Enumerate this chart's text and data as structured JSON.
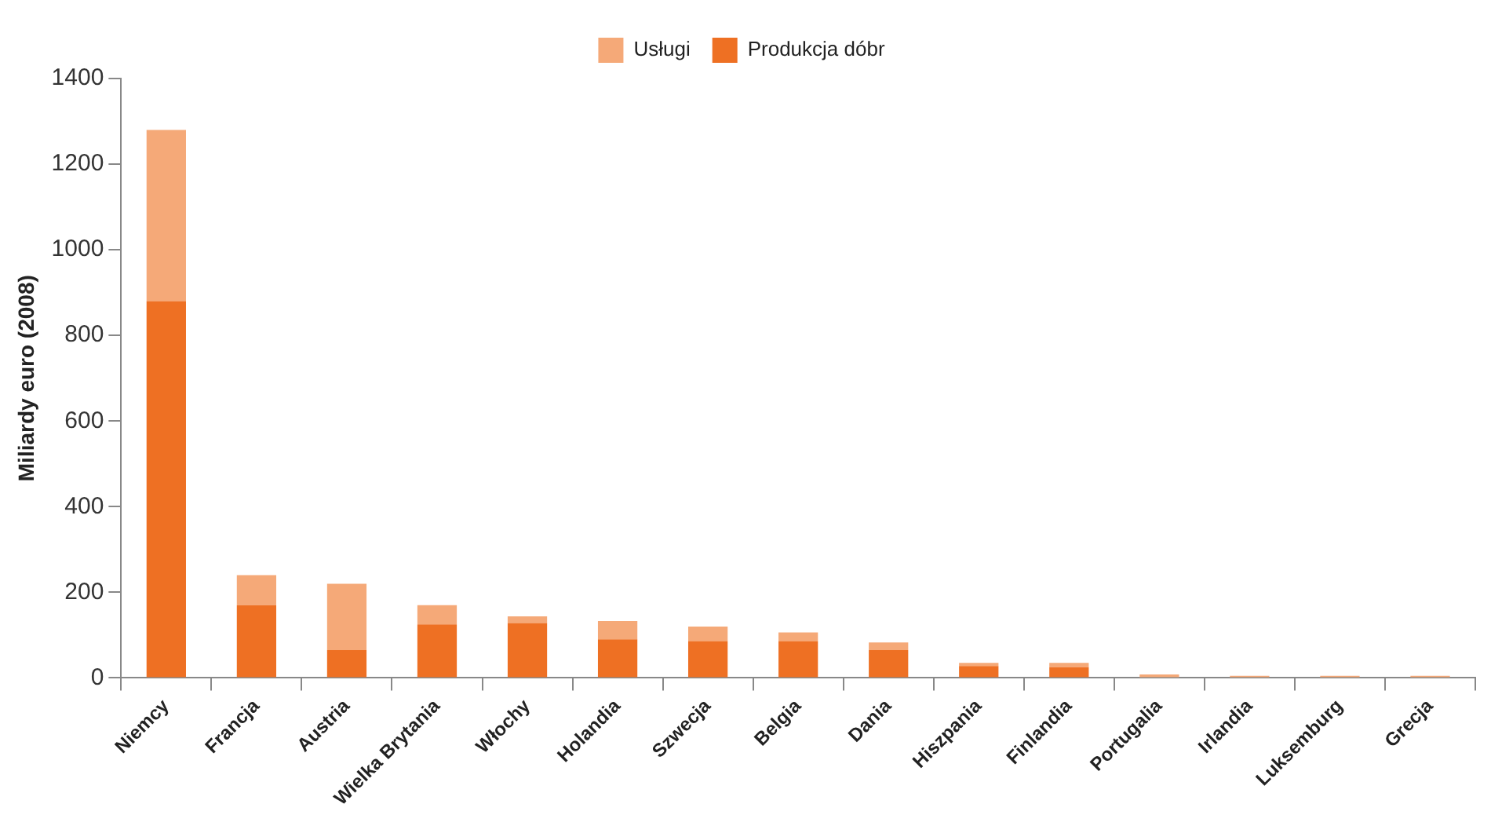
{
  "chart_data": {
    "type": "bar",
    "stacked": true,
    "ylabel": "Miliardy euro (2008)",
    "categories": [
      "Niemcy",
      "Francja",
      "Austria",
      "Wielka Brytania",
      "Włochy",
      "Holandia",
      "Szwecja",
      "Belgia",
      "Dania",
      "Hiszpania",
      "Finlandia",
      "Portugalia",
      "Irlandia",
      "Luksemburg",
      "Grecja"
    ],
    "series": [
      {
        "name": "Produkcja dóbr",
        "color": "#ee7023",
        "values": [
          880,
          170,
          65,
          125,
          128,
          90,
          86,
          86,
          65,
          28,
          25,
          0,
          0,
          0,
          0
        ]
      },
      {
        "name": "Usługi",
        "color": "#f5a978",
        "values": [
          400,
          70,
          155,
          45,
          16,
          43,
          34,
          20,
          18,
          7,
          10,
          8,
          5,
          5,
          5
        ]
      }
    ],
    "ylim": [
      0,
      1400
    ],
    "yticks": [
      0,
      200,
      400,
      600,
      800,
      1000,
      1200,
      1400
    ],
    "grid": false,
    "legend": "top"
  }
}
